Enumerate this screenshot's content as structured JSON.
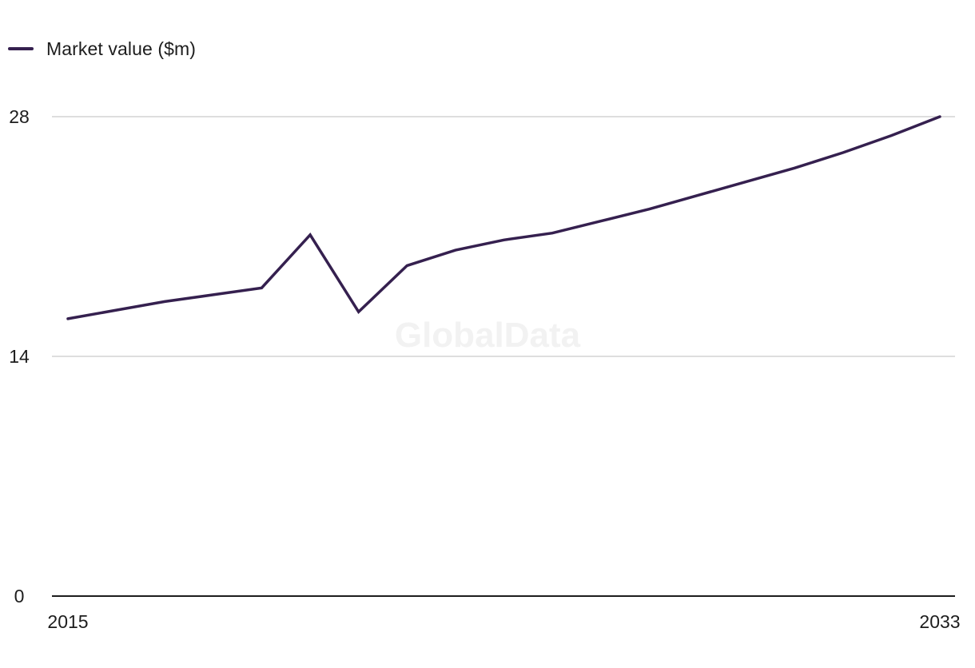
{
  "legend": {
    "label": "Market value ($m)"
  },
  "watermark": "GlobalData",
  "colors": {
    "series": "#35204f",
    "grid": "#d4d4d4",
    "axis": "#1d1d1d"
  },
  "chart_data": {
    "type": "line",
    "x": [
      2015,
      2016,
      2017,
      2018,
      2019,
      2020,
      2021,
      2022,
      2023,
      2024,
      2025,
      2026,
      2027,
      2028,
      2029,
      2030,
      2031,
      2032,
      2033
    ],
    "series": [
      {
        "name": "Market value ($m)",
        "values": [
          16.2,
          16.7,
          17.2,
          17.6,
          18.0,
          21.1,
          16.6,
          19.3,
          20.2,
          20.8,
          21.2,
          21.9,
          22.6,
          23.4,
          24.2,
          25.0,
          25.9,
          26.9,
          28.0
        ]
      }
    ],
    "ylim": [
      0,
      28
    ],
    "yticks": [
      0,
      14,
      28
    ],
    "xtick_labels": [
      "2015",
      "2033"
    ],
    "grid": true,
    "legend_position": "top-left"
  }
}
